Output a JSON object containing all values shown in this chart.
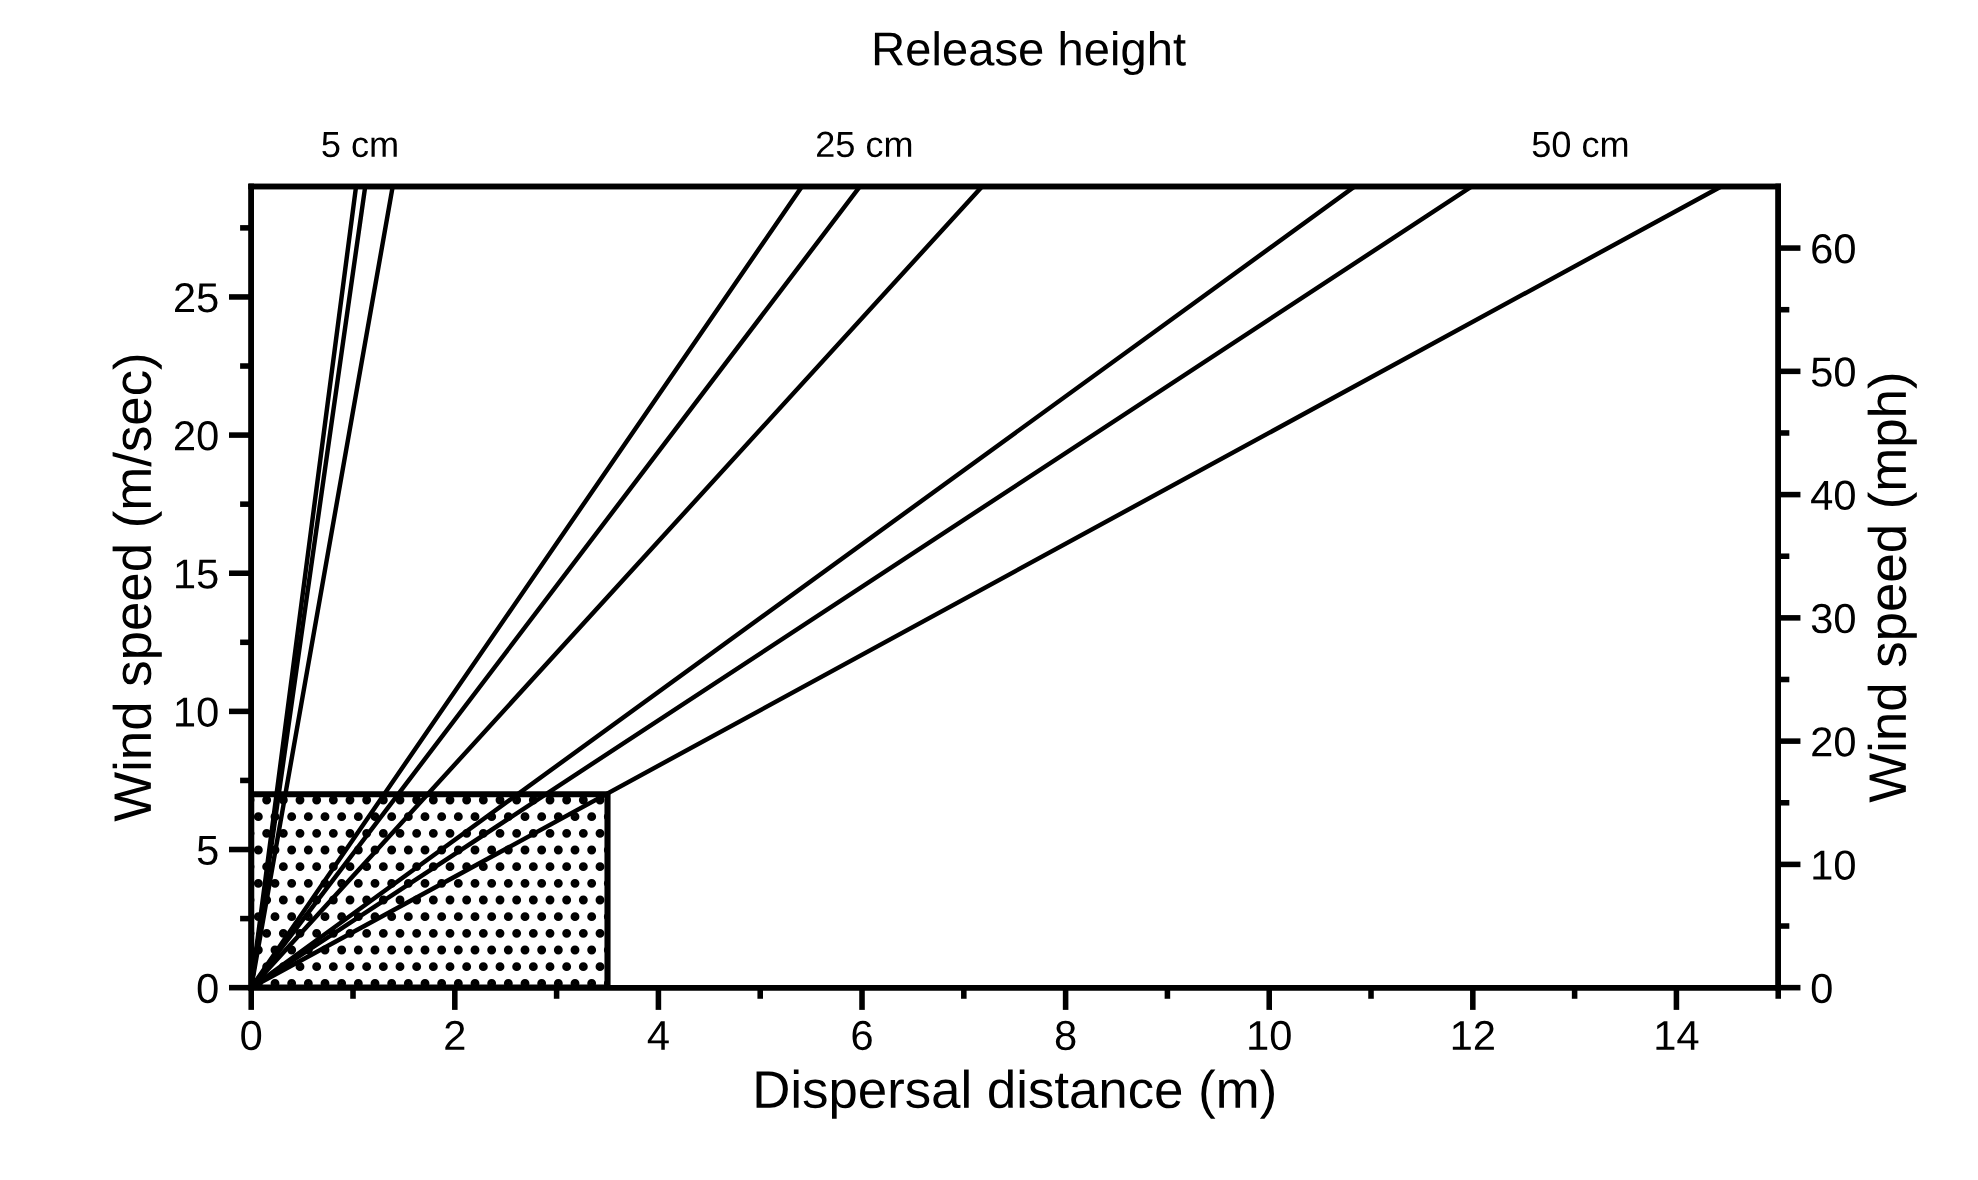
{
  "chart_data": {
    "type": "line",
    "title": "Release height",
    "xlabel": "Dispersal distance (m)",
    "ylabel": "Wind speed (m/sec)",
    "y2label": "Wind speed (mph)",
    "xlim": [
      0,
      15
    ],
    "ylim": [
      0,
      29
    ],
    "y2lim": [
      0,
      65
    ],
    "xticks": [
      0,
      {
        "value": 1,
        "label": null
      },
      2,
      {
        "value": 3,
        "label": null
      },
      4,
      {
        "value": 5,
        "label": null
      },
      6,
      {
        "value": 7,
        "label": null
      },
      8,
      {
        "value": 9,
        "label": null
      },
      10,
      {
        "value": 11,
        "label": null
      },
      12,
      {
        "value": 13,
        "label": null
      },
      14,
      {
        "value": 15,
        "label": null
      }
    ],
    "yticks": [
      0,
      {
        "value": 2.5,
        "label": null
      },
      5,
      {
        "value": 7.5,
        "label": null
      },
      10,
      {
        "value": 12.5,
        "label": null
      },
      15,
      {
        "value": 17.5,
        "label": null
      },
      20,
      {
        "value": 22.5,
        "label": null
      },
      25,
      {
        "value": 27.5,
        "label": null
      }
    ],
    "y2ticks": [
      0,
      {
        "value": 5,
        "label": null
      },
      10,
      {
        "value": 15,
        "label": null
      },
      20,
      {
        "value": 25,
        "label": null
      },
      30,
      {
        "value": 35,
        "label": null
      },
      40,
      {
        "value": 45,
        "label": null
      },
      50,
      {
        "value": 55,
        "label": null
      },
      60
    ],
    "series": [
      {
        "type": "area",
        "color": "#000000",
        "x": [
          0,
          3.5
        ],
        "values": [
          7,
          7
        ]
      },
      {
        "color": "#000000",
        "x": [
          0,
          1.03
        ],
        "values": [
          0,
          29
        ]
      },
      {
        "color": "#000000",
        "x": [
          0,
          1.12
        ],
        "values": [
          0,
          29
        ]
      },
      {
        "color": "#000000",
        "x": [
          0,
          1.39
        ],
        "values": [
          0,
          29
        ]
      },
      {
        "color": "#000000",
        "x": [
          0,
          5.41
        ],
        "values": [
          0,
          29
        ]
      },
      {
        "color": "#000000",
        "x": [
          0,
          5.98
        ],
        "values": [
          0,
          29
        ]
      },
      {
        "color": "#000000",
        "x": [
          0,
          7.18
        ],
        "values": [
          0,
          29
        ]
      },
      {
        "color": "#000000",
        "x": [
          0,
          10.84
        ],
        "values": [
          0,
          29
        ]
      },
      {
        "color": "#000000",
        "x": [
          0,
          11.99
        ],
        "values": [
          0,
          29
        ]
      },
      {
        "color": "#000000",
        "x": [
          0,
          14.44
        ],
        "values": [
          0,
          29
        ]
      }
    ],
    "annotations": [
      "5 cm",
      "25 cm",
      "50 cm"
    ],
    "grid": false,
    "legend": false,
    "marker": "none",
    "line_style": "solid"
  }
}
